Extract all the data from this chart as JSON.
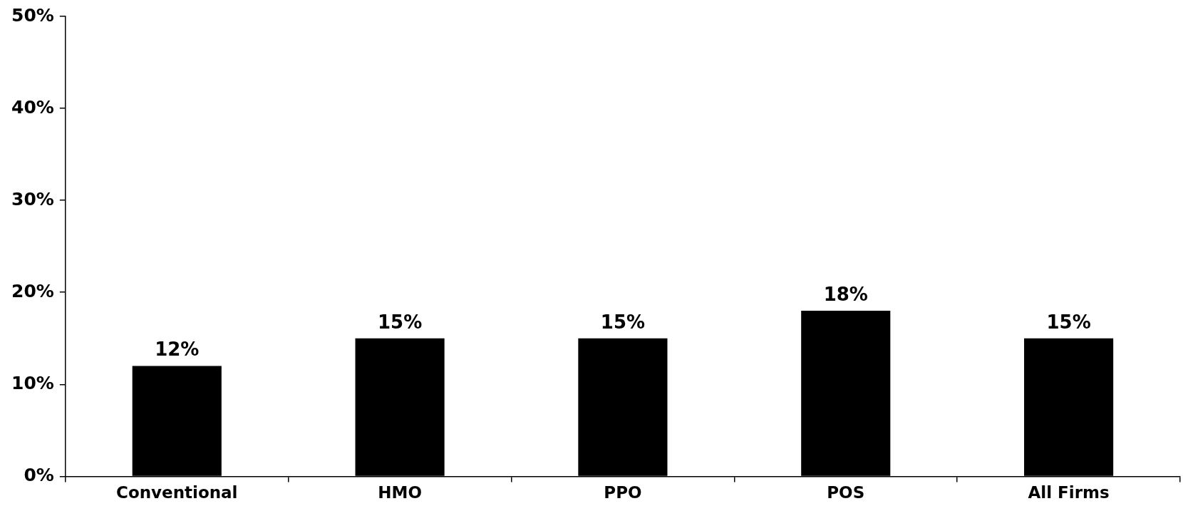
{
  "chart_data": {
    "type": "bar",
    "categories": [
      "Conventional",
      "HMO",
      "PPO",
      "POS",
      "All Firms"
    ],
    "values": [
      12,
      15,
      15,
      18,
      15
    ],
    "value_labels": [
      "12%",
      "15%",
      "15%",
      "18%",
      "15%"
    ],
    "color": "#000000",
    "ylim": [
      0,
      50
    ],
    "yticks": [
      {
        "value": 0,
        "label": "0%"
      },
      {
        "value": 10,
        "label": "10%"
      },
      {
        "value": 20,
        "label": "20%"
      },
      {
        "value": 30,
        "label": "30%"
      },
      {
        "value": 40,
        "label": "40%"
      },
      {
        "value": 50,
        "label": "50%"
      }
    ],
    "grid": false,
    "legend": false
  }
}
